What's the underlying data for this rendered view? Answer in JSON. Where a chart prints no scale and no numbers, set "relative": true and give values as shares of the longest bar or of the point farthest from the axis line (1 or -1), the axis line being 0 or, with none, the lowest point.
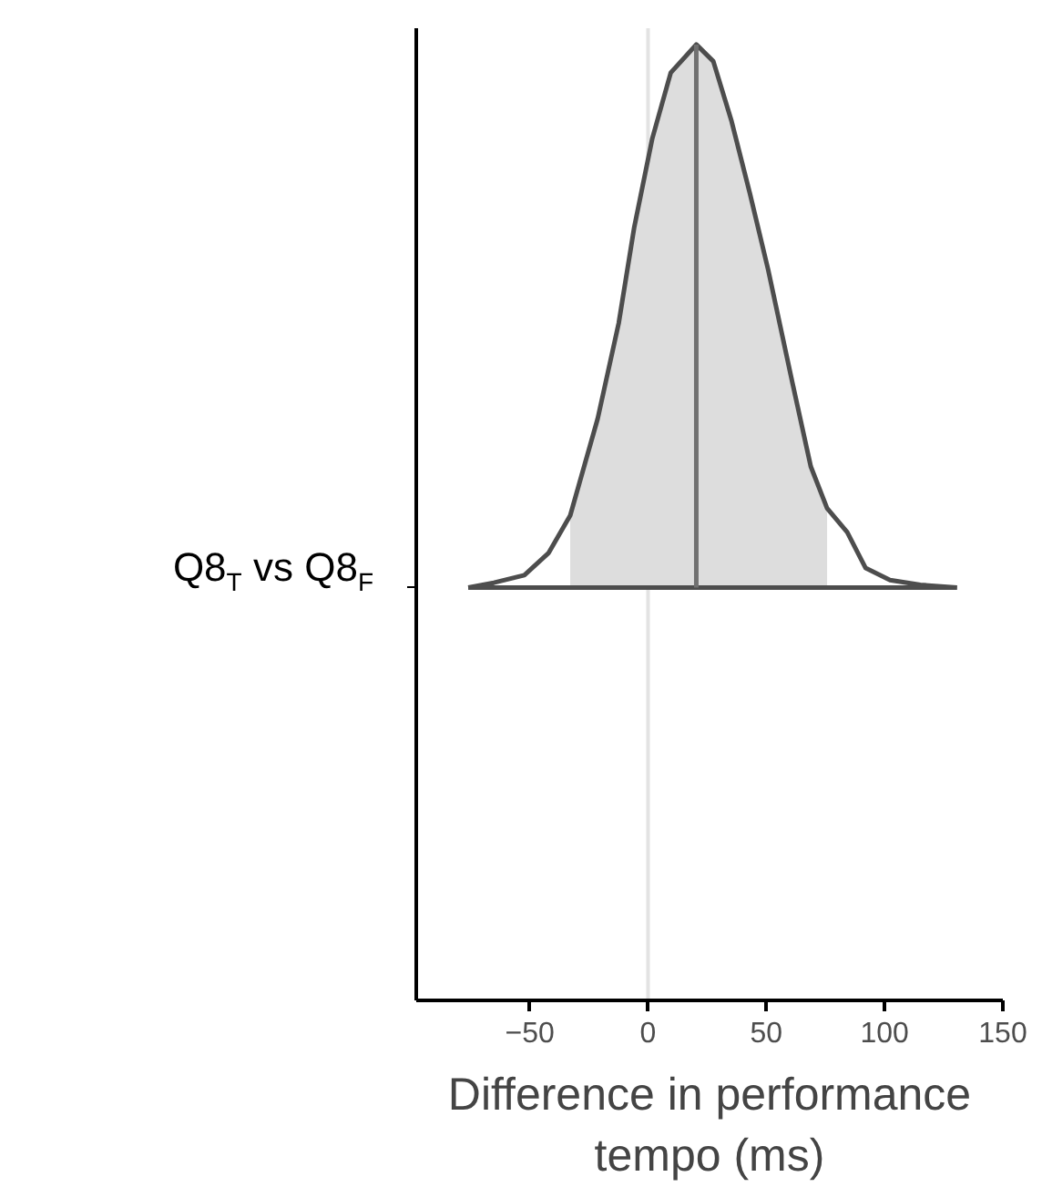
{
  "chart_data": {
    "type": "area",
    "relative": true,
    "xlabel": "Difference in performance tempo (ms)",
    "ylabel": "Q8$_{T}$ vs Q8$_{F}$",
    "xlim": [
      -98,
      150
    ],
    "xticks": [
      -50,
      0,
      50,
      100,
      150
    ],
    "grid": false,
    "series": [
      {
        "color": "#dddddd",
        "x": [
          -32.9,
          -21.3,
          -12.4,
          -5.9,
          1.8,
          9.6,
          20.4,
          27.6,
          35.3,
          43.0,
          50.8,
          61.1,
          68.8,
          75.7
        ],
        "values": [
          0.133,
          0.311,
          0.487,
          0.662,
          0.827,
          0.948,
          1.0,
          0.969,
          0.859,
          0.727,
          0.585,
          0.376,
          0.223,
          0.146
        ]
      },
      {
        "type": "line",
        "color": "#4d4d4d",
        "x": [
          -76.0,
          -65.2,
          -52.3,
          -42.0,
          -32.9,
          -21.3,
          -12.4,
          -5.9,
          1.8,
          9.6,
          20.4,
          27.6,
          35.3,
          43.0,
          50.8,
          61.1,
          68.8,
          75.7,
          84.2,
          92.0,
          102.3,
          115.1,
          130.6
        ],
        "values": [
          0,
          0.009,
          0.023,
          0.064,
          0.133,
          0.311,
          0.487,
          0.662,
          0.827,
          0.948,
          1.0,
          0.969,
          0.859,
          0.727,
          0.585,
          0.376,
          0.223,
          0.146,
          0.102,
          0.036,
          0.014,
          0.005,
          0
        ]
      },
      {
        "type": "line",
        "color": "#4d4d4d",
        "x": [
          -76.0,
          130.6
        ],
        "values": [
          0,
          0
        ]
      },
      {
        "type": "line",
        "color": "#707070",
        "x": [
          20.4,
          20.4
        ],
        "values": [
          0,
          1.0
        ]
      }
    ],
    "ref_lines": [
      {
        "axis": "x",
        "value": 0,
        "color": "#e3e3e3"
      }
    ]
  }
}
